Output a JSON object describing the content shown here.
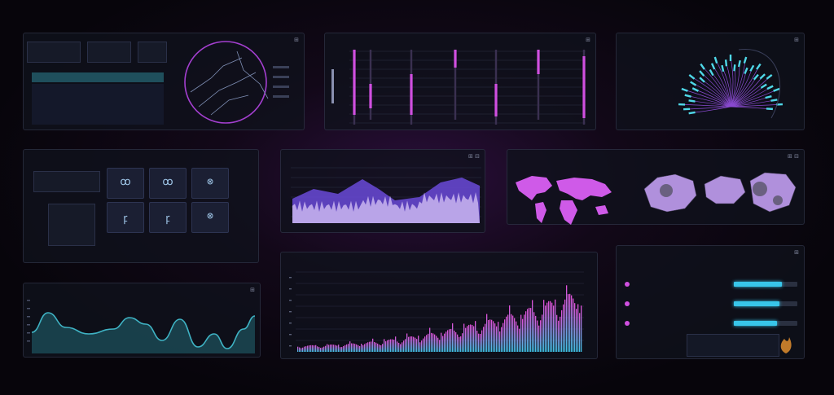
{
  "panels": {
    "p1": {
      "control": "⊞"
    },
    "p2": {
      "control": "⊞"
    },
    "p3": {
      "control": "⊞"
    },
    "p4": {
      "control": "⊞"
    },
    "p5": {
      "control": "⊞ ⊟"
    },
    "p6": {
      "control": "⊞ ⊟"
    },
    "p7": {
      "control": "⊞"
    },
    "p8": {
      "control": "⊞"
    },
    "p9": {
      "control": "⊞"
    }
  },
  "tiles": [
    {
      "glyph": "ꝏ"
    },
    {
      "glyph": "ꝏ"
    },
    {
      "glyph": "⊗"
    },
    {
      "glyph": "ꝼ"
    },
    {
      "glyph": "ꝼ"
    },
    {
      "glyph": "⊗"
    }
  ],
  "progress": [
    {
      "value": 0.75
    },
    {
      "value": 0.72
    },
    {
      "value": 0.68
    }
  ],
  "colors": {
    "accent_cyan": "#38c6ea",
    "accent_magenta": "#d04fe0",
    "accent_purple": "#7b4fd8",
    "teal_line": "#3fb3c4"
  }
}
